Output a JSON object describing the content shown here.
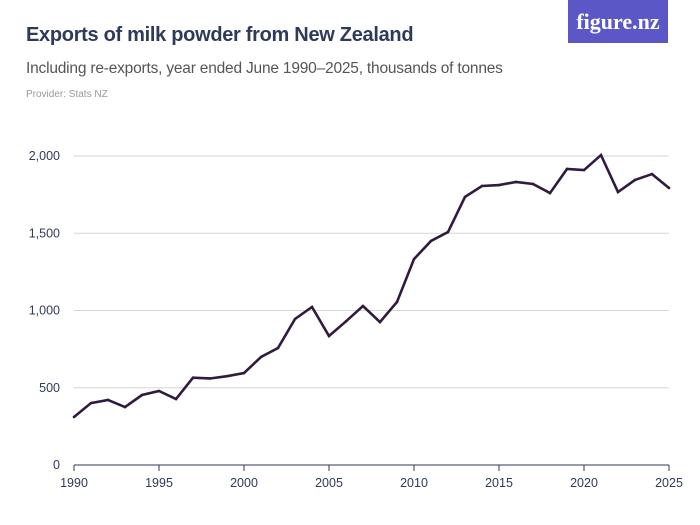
{
  "title": "Exports of milk powder from New Zealand",
  "subtitle": "Including re-exports, year ended June 1990–2025, thousands of tonnes",
  "provider": "Provider: Stats NZ",
  "logo": "figure.nz",
  "colors": {
    "line": "#301a3f",
    "logo_bg": "#5b57c7",
    "title": "#2f3a5a"
  },
  "chart_data": {
    "type": "line",
    "title": "Exports of milk powder from New Zealand",
    "xlabel": "",
    "ylabel": "",
    "ylim": [
      0,
      2000
    ],
    "xlim": [
      1990,
      2025
    ],
    "grid": true,
    "y_ticks": [
      "0",
      "500",
      "1,000",
      "1,500",
      "2,000"
    ],
    "x_ticks": [
      "1990",
      "1995",
      "2000",
      "2005",
      "2010",
      "2015",
      "2020",
      "2025"
    ],
    "x": [
      1990,
      1991,
      1992,
      1993,
      1994,
      1995,
      1996,
      1997,
      1998,
      1999,
      2000,
      2001,
      2002,
      2003,
      2004,
      2005,
      2006,
      2007,
      2008,
      2009,
      2010,
      2011,
      2012,
      2013,
      2014,
      2015,
      2016,
      2017,
      2018,
      2019,
      2020,
      2021,
      2022,
      2023,
      2024,
      2025
    ],
    "values": [
      311,
      401,
      421,
      375,
      453,
      479,
      427,
      565,
      560,
      575,
      595,
      699,
      757,
      945,
      1023,
      835,
      930,
      1029,
      925,
      1055,
      1333,
      1450,
      1508,
      1735,
      1806,
      1812,
      1832,
      1819,
      1760,
      1916,
      1909,
      2006,
      1767,
      1845,
      1883,
      1793
    ]
  }
}
